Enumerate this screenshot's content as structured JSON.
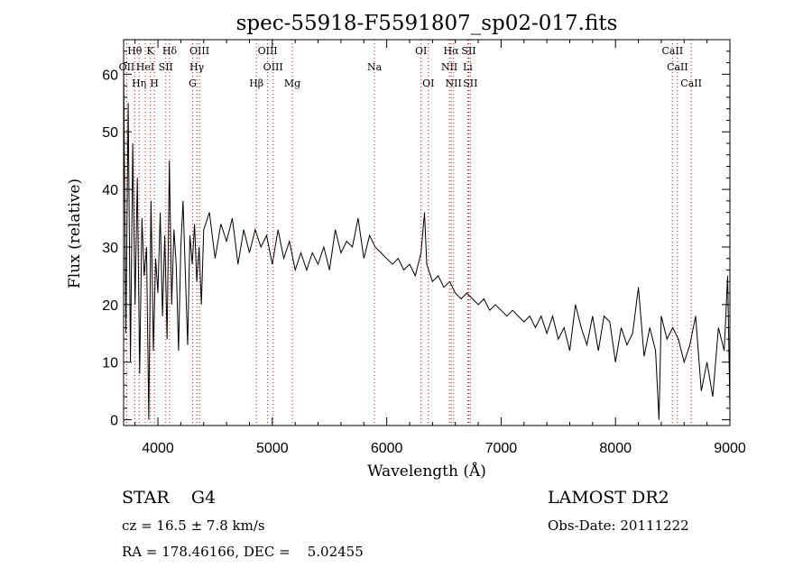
{
  "chart_data": {
    "type": "line",
    "title": "spec-55918-F5591807_sp02-017.fits",
    "xlabel": "Wavelength (Å)",
    "ylabel": "Flux (relative)",
    "xlim": [
      3700,
      9000
    ],
    "ylim": [
      -1,
      66
    ],
    "xticks": [
      4000,
      5000,
      6000,
      7000,
      8000,
      9000
    ],
    "yticks": [
      0,
      10,
      20,
      30,
      40,
      50,
      60
    ],
    "grid": false,
    "line_color": "#000000",
    "marker_color": "#ff0000",
    "lines": [
      {
        "label": "Hθ",
        "x": 3797,
        "row": 0
      },
      {
        "label": "K",
        "x": 3934,
        "row": 0
      },
      {
        "label": "Hδ",
        "x": 4102,
        "row": 0
      },
      {
        "label": "OIII",
        "x": 4363,
        "row": 0
      },
      {
        "label": "OIII",
        "x": 4959,
        "row": 0
      },
      {
        "label": "OI",
        "x": 6300,
        "row": 0
      },
      {
        "label": "Hα",
        "x": 6563,
        "row": 0
      },
      {
        "label": "SII",
        "x": 6717,
        "row": 0
      },
      {
        "label": "CaII",
        "x": 8498,
        "row": 0
      },
      {
        "label": "OII",
        "x": 3727,
        "row": 1
      },
      {
        "label": "HeI",
        "x": 3889,
        "row": 1
      },
      {
        "label": "SII",
        "x": 4069,
        "row": 1
      },
      {
        "label": "Hγ",
        "x": 4340,
        "row": 1
      },
      {
        "label": "OIII",
        "x": 5007,
        "row": 1
      },
      {
        "label": "Na",
        "x": 5893,
        "row": 1
      },
      {
        "label": "NII",
        "x": 6548,
        "row": 1
      },
      {
        "label": "Li",
        "x": 6708,
        "row": 1
      },
      {
        "label": "CaII",
        "x": 8542,
        "row": 1
      },
      {
        "label": "Hη",
        "x": 3835,
        "row": 2
      },
      {
        "label": "H",
        "x": 3969,
        "row": 2
      },
      {
        "label": "G",
        "x": 4304,
        "row": 2
      },
      {
        "label": "Hβ",
        "x": 4861,
        "row": 2
      },
      {
        "label": "Mg",
        "x": 5175,
        "row": 2
      },
      {
        "label": "OI",
        "x": 6364,
        "row": 2
      },
      {
        "label": "NII",
        "x": 6584,
        "row": 2
      },
      {
        "label": "SII",
        "x": 6731,
        "row": 2
      },
      {
        "label": "CaII",
        "x": 8662,
        "row": 2
      }
    ],
    "series": [
      {
        "x": [
          3700,
          3720,
          3740,
          3760,
          3780,
          3800,
          3820,
          3840,
          3860,
          3880,
          3900,
          3920,
          3940,
          3960,
          3980,
          4000,
          4020,
          4040,
          4060,
          4080,
          4100,
          4120,
          4140,
          4160,
          4180,
          4200,
          4220,
          4240,
          4260,
          4280,
          4300,
          4320,
          4340,
          4360,
          4380,
          4400,
          4450,
          4500,
          4550,
          4600,
          4650,
          4700,
          4750,
          4800,
          4850,
          4900,
          4950,
          5000,
          5050,
          5100,
          5150,
          5200,
          5250,
          5300,
          5350,
          5400,
          5450,
          5500,
          5550,
          5600,
          5650,
          5700,
          5750,
          5800,
          5850,
          5900,
          5950,
          6000,
          6050,
          6100,
          6150,
          6200,
          6250,
          6300,
          6330,
          6350,
          6400,
          6450,
          6500,
          6550,
          6600,
          6650,
          6700,
          6750,
          6800,
          6850,
          6900,
          6950,
          7000,
          7050,
          7100,
          7150,
          7200,
          7250,
          7300,
          7350,
          7400,
          7450,
          7500,
          7550,
          7600,
          7650,
          7700,
          7750,
          7800,
          7850,
          7900,
          7950,
          8000,
          8050,
          8100,
          8150,
          8200,
          8250,
          8300,
          8350,
          8380,
          8400,
          8450,
          8500,
          8550,
          8600,
          8650,
          8700,
          8750,
          8800,
          8850,
          8900,
          8950,
          8980,
          9000
        ],
        "y": [
          62,
          15,
          55,
          10,
          48,
          20,
          42,
          8,
          35,
          25,
          30,
          0,
          38,
          12,
          28,
          22,
          36,
          18,
          32,
          14,
          45,
          20,
          33,
          27,
          12,
          30,
          38,
          25,
          13,
          32,
          27,
          34,
          24,
          30,
          20,
          33,
          36,
          28,
          34,
          31,
          35,
          27,
          33,
          29,
          33,
          30,
          32,
          27,
          33,
          28,
          31,
          26,
          29,
          26,
          29,
          27,
          30,
          26,
          33,
          29,
          31,
          30,
          35,
          28,
          32,
          30,
          29,
          28,
          27,
          28,
          26,
          27,
          25,
          29,
          36,
          27,
          24,
          25,
          23,
          24,
          22,
          21,
          22,
          21,
          20,
          21,
          19,
          20,
          19,
          18,
          19,
          18,
          17,
          18,
          16,
          18,
          15,
          18,
          14,
          16,
          12,
          20,
          16,
          13,
          18,
          12,
          18,
          17,
          10,
          16,
          13,
          15,
          23,
          11,
          16,
          12,
          0,
          18,
          14,
          16,
          14,
          10,
          13,
          18,
          5,
          10,
          4,
          16,
          12,
          25,
          2
        ]
      }
    ],
    "labels": [
      {
        "text": "STAR    G4",
        "size": "big"
      },
      {
        "text": "cz = 16.5 ± 7.8 km/s",
        "size": "small"
      },
      {
        "text": "RA = 178.46166, DEC =    5.02455",
        "size": "small"
      },
      {
        "text": "LAMOST DR2",
        "size": "big"
      },
      {
        "text": "Obs-Date: 20111222",
        "size": "small"
      }
    ]
  }
}
